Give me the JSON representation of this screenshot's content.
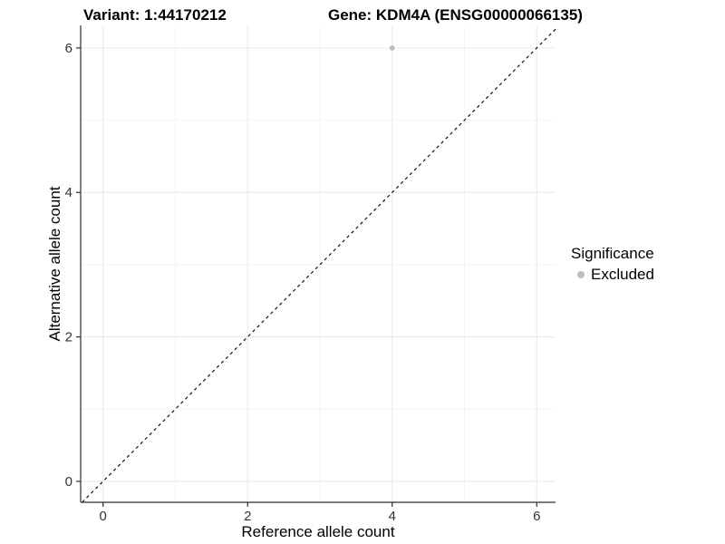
{
  "header": {
    "variant_title": "Variant: 1:44170212",
    "gene_title": "Gene: KDM4A (ENSG00000066135)"
  },
  "chart_data": {
    "type": "scatter",
    "xlabel": "Reference allele count",
    "ylabel": "Alternative allele count",
    "xlim": [
      -0.31,
      6.26
    ],
    "ylim": [
      -0.29,
      6.3
    ],
    "x_ticks": [
      0,
      2,
      4,
      6
    ],
    "y_ticks": [
      0,
      2,
      4,
      6
    ],
    "x_minor_ticks": [
      1,
      3,
      5
    ],
    "y_minor_ticks": [
      1,
      3,
      5
    ],
    "grid": "on",
    "reference_line": {
      "type": "identity",
      "slope": 1,
      "intercept": 0,
      "style": "dashed"
    },
    "series": [
      {
        "name": "Excluded",
        "marker": "circle",
        "color": "#bdbdbd",
        "points": [
          {
            "x": 4,
            "y": 6
          }
        ]
      }
    ],
    "legend": {
      "title": "Significance",
      "position": "right",
      "entries": [
        {
          "label": "Excluded",
          "marker": "circle",
          "color": "#bdbdbd"
        }
      ]
    }
  },
  "colors": {
    "background": "#ffffff",
    "grid_major": "#e8e8e8",
    "grid_minor": "#f4f4f4",
    "axis_line": "#2d2d2d",
    "tick_label": "#333333",
    "reference_line": "#000000",
    "point": "#bdbdbd"
  }
}
